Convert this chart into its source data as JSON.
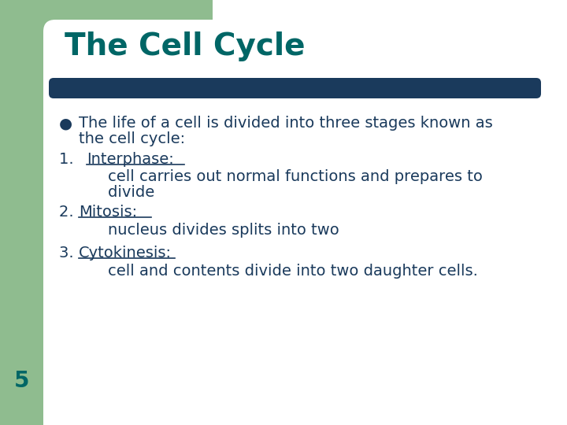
{
  "title": "The Cell Cycle",
  "title_color": "#006666",
  "title_fontsize": 28,
  "bg_color": "#ffffff",
  "left_bar_color": "#8fbc8f",
  "divider_color": "#1a3a5c",
  "text_color": "#1a3a5c",
  "number_5_color": "#006666",
  "bullet": "●",
  "font_family": "DejaVu Sans",
  "body_fontsize": 14,
  "bullet_line1": "The life of a cell is divided into three stages known as",
  "bullet_line2": "the cell cycle:",
  "item1_num": "1.  ",
  "item1_label": "Interphase:",
  "item1_desc1": "    cell carries out normal functions and prepares to",
  "item1_desc2": "    divide",
  "item2_num": "2. ",
  "item2_label": "Mitosis:",
  "item2_desc": "    nucleus divides splits into two",
  "item3_num": "3. ",
  "item3_label": "Cytokinesis:",
  "item3_desc": "    cell and contents divide into two daughter cells.",
  "number5": "5"
}
